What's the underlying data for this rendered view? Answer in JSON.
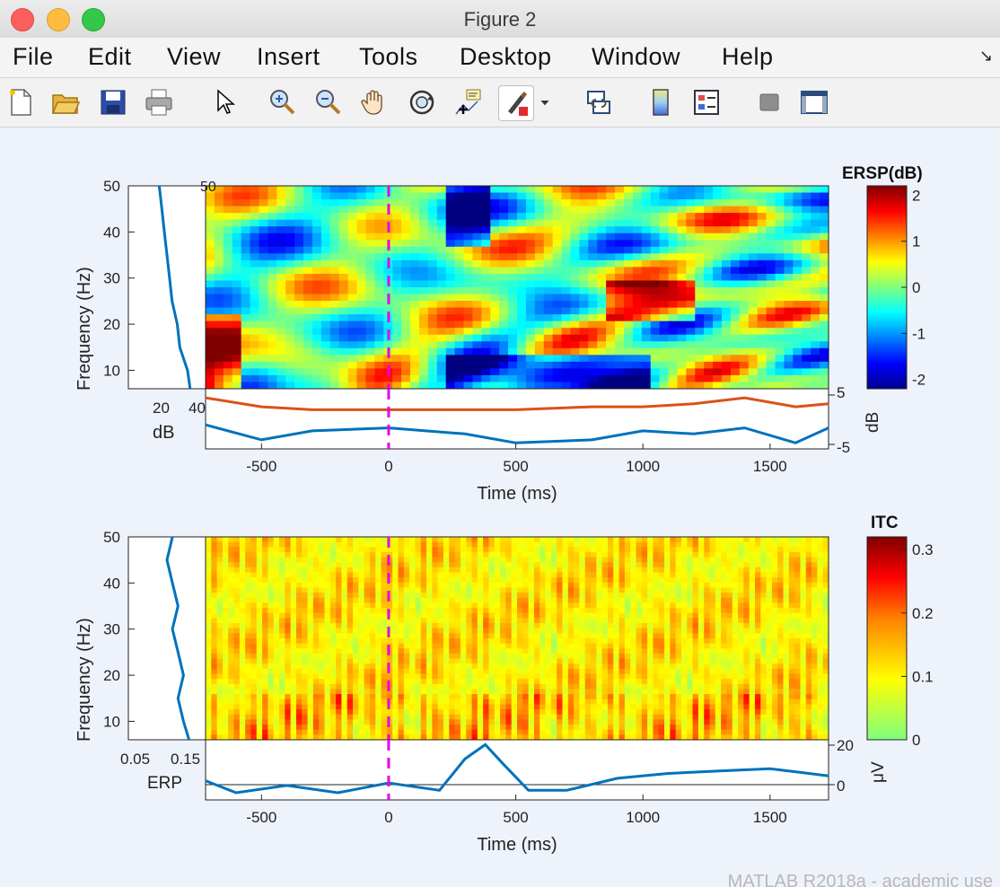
{
  "window": {
    "title": "Figure 2"
  },
  "menu": [
    "File",
    "Edit",
    "View",
    "Insert",
    "Tools",
    "Desktop",
    "Window",
    "Help"
  ],
  "menu_collapse_icon": "arrow-down-right-icon",
  "toolbar": [
    {
      "name": "new-figure-icon"
    },
    {
      "name": "open-file-icon"
    },
    {
      "name": "save-icon"
    },
    {
      "name": "print-icon"
    },
    {
      "name": "pointer-icon"
    },
    {
      "name": "zoom-in-icon"
    },
    {
      "name": "zoom-out-icon"
    },
    {
      "name": "pan-hand-icon"
    },
    {
      "name": "rotate-3d-icon"
    },
    {
      "name": "data-cursor-icon"
    },
    {
      "name": "brush-icon"
    },
    {
      "name": "dropdown-arrow-icon"
    },
    {
      "name": "link-plot-icon"
    },
    {
      "name": "colorbar-icon"
    },
    {
      "name": "legend-icon"
    },
    {
      "name": "hide-plot-tools-icon"
    },
    {
      "name": "show-plot-tools-icon"
    }
  ],
  "background_text": "MATLAB R2018a - academic use",
  "chart_data": [
    {
      "type": "heatmap",
      "title": "ERSP(dB)",
      "xlabel": "Time (ms)",
      "ylabel": "Frequency (Hz)",
      "xlim": [
        -720,
        1730
      ],
      "ylim": [
        6,
        50
      ],
      "xticks": [
        "-500",
        "0",
        "500",
        "1000",
        "1500"
      ],
      "yticks": [
        "10",
        "20",
        "30",
        "40",
        "50"
      ],
      "colorbar": {
        "label": "ERSP(dB)",
        "range": [
          -2.2,
          2.2
        ],
        "ticks": [
          "2",
          "1",
          "0",
          "-1",
          "-2"
        ],
        "colormap": "jet"
      },
      "event_marker_ms": 0,
      "marginal_left": {
        "xlabel": "dB",
        "xticks": [
          "20",
          "40"
        ],
        "freq": [
          6,
          10,
          15,
          20,
          25,
          30,
          35,
          40,
          45,
          50
        ],
        "db": [
          38,
          37,
          34,
          33,
          31,
          30,
          29,
          28,
          27,
          26
        ]
      },
      "marginal_bottom": {
        "ylabel": "dB",
        "yticks": [
          "5",
          "-5"
        ],
        "ylim": [
          -5,
          5
        ],
        "time": [
          -720,
          -500,
          -300,
          0,
          300,
          500,
          800,
          1000,
          1200,
          1400,
          1600,
          1730
        ],
        "series": [
          {
            "values": [
              3.5,
              2.0,
              1.5,
              1.5,
              1.5,
              1.5,
              2.0,
              2.0,
              2.5,
              3.5,
              2.0,
              2.5
            ]
          },
          {
            "values": [
              -1.0,
              -3.5,
              -2.0,
              -1.5,
              -2.5,
              -4.0,
              -3.5,
              -2.0,
              -2.5,
              -1.5,
              -4.0,
              -1.5
            ]
          }
        ]
      }
    },
    {
      "type": "heatmap",
      "title": "ITC",
      "xlabel": "Time (ms)",
      "ylabel": "Frequency (Hz)",
      "xlim": [
        -720,
        1730
      ],
      "ylim": [
        6,
        50
      ],
      "xticks": [
        "-500",
        "0",
        "500",
        "1000",
        "1500"
      ],
      "yticks": [
        "10",
        "20",
        "30",
        "40",
        "50"
      ],
      "colorbar": {
        "label": "ITC",
        "range": [
          0,
          0.32
        ],
        "ticks": [
          "0.3",
          "0.2",
          "0.1",
          "0"
        ],
        "colormap": "yellow-red"
      },
      "event_marker_ms": 0,
      "marginal_left": {
        "xlabel": "ERP",
        "xticks": [
          "0.05",
          "0.15"
        ],
        "freq": [
          6,
          10,
          15,
          20,
          25,
          30,
          35,
          40,
          45,
          50
        ],
        "itc": [
          0.14,
          0.13,
          0.12,
          0.13,
          0.12,
          0.11,
          0.12,
          0.11,
          0.1,
          0.11
        ]
      },
      "marginal_bottom": {
        "ylabel": "μV",
        "yticks": [
          "20",
          "0"
        ],
        "ylim": [
          -5,
          20
        ],
        "time": [
          -720,
          -600,
          -400,
          -200,
          0,
          200,
          300,
          380,
          450,
          550,
          700,
          900,
          1100,
          1300,
          1500,
          1730
        ],
        "series": [
          {
            "values": [
              3,
              -2,
              1,
              -2,
              2,
              -1,
              12,
              18,
              10,
              -1,
              -1,
              4,
              6,
              7,
              8,
              5
            ]
          }
        ]
      }
    }
  ]
}
